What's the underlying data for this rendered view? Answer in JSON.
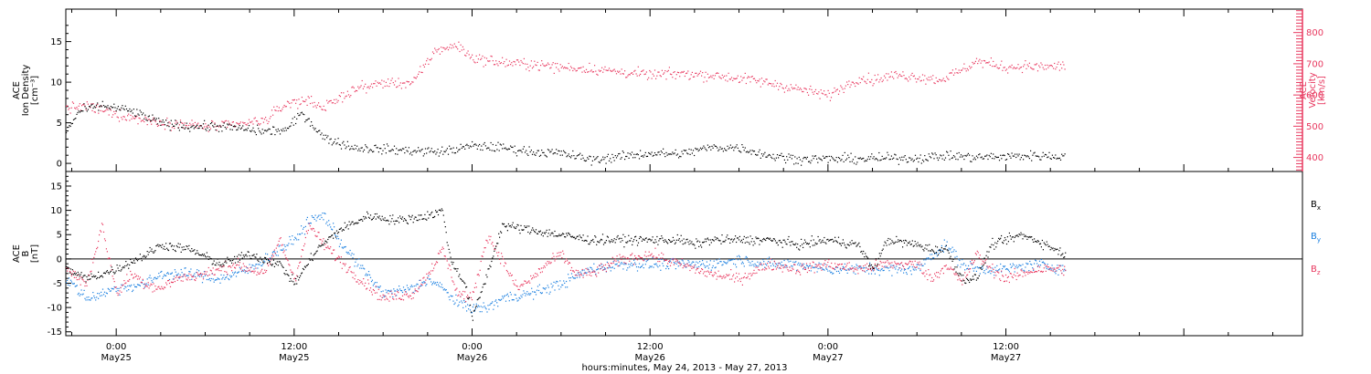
{
  "colors": {
    "density": "#000000",
    "velocity": "#e8385f",
    "bx": "#000000",
    "by": "#1a7fe0",
    "bz": "#e8385f",
    "frame": "#000000"
  },
  "top_panel": {
    "left_axis_label": [
      "ACE",
      "Ion Density",
      "[cm⁻³]"
    ],
    "right_axis_label": [
      "ACE",
      "Velocity",
      "[km/s]"
    ]
  },
  "bottom_panel": {
    "left_axis_label": [
      "ACE",
      "B",
      "[nT]"
    ],
    "legend": {
      "bx": "Bx",
      "by": "By",
      "bz": "Bz"
    }
  },
  "x_axis": {
    "title": "hours:minutes, May 24, 2013 - May 27, 2013"
  },
  "chart_data": [
    {
      "type": "scatter",
      "panel": "top",
      "xlim_hours_from_may24_00": [
        20.6,
        104
      ],
      "ylim": [
        -1,
        19
      ],
      "ylim_right": [
        355,
        875
      ],
      "left_ticks": [
        0,
        5,
        10,
        15
      ],
      "right_ticks": [
        400,
        500,
        600,
        700,
        800
      ],
      "series": [
        {
          "name": "Ion Density",
          "axis": "left",
          "anchors_x_hours": [
            20.6,
            21.5,
            23,
            25,
            27,
            29,
            31,
            33,
            34,
            35.5,
            36.5,
            38,
            40,
            42,
            44,
            46,
            48,
            50,
            52,
            54,
            56,
            58,
            60,
            62,
            64,
            66,
            68,
            70,
            72,
            74,
            76,
            78,
            80,
            82,
            84,
            85.5,
            86.5,
            88
          ],
          "anchors_y": [
            4,
            6.5,
            7.2,
            6.5,
            5,
            4.6,
            4.6,
            4.2,
            4,
            4.2,
            6.3,
            3.2,
            2,
            1.8,
            1.6,
            1.5,
            2.2,
            2.0,
            1.5,
            1.3,
            0.5,
            0.9,
            1.3,
            1.2,
            2.0,
            2.0,
            1.0,
            0.6,
            0.6,
            0.6,
            0.7,
            0.7,
            1.0,
            0.8,
            0.9,
            1.0,
            1.0,
            0.9
          ]
        },
        {
          "name": "Velocity",
          "axis": "right",
          "anchors_x_hours": [
            20.6,
            22,
            24,
            26,
            28,
            30,
            32,
            34,
            35.5,
            37,
            38,
            40,
            42,
            44,
            45.5,
            47,
            48,
            50,
            52,
            54,
            56,
            58,
            60,
            62,
            64,
            66,
            68,
            70,
            72,
            74,
            75,
            76.5,
            78,
            79.5,
            80,
            81,
            82,
            84,
            85.5,
            86,
            88
          ],
          "anchors_y": [
            560,
            565,
            540,
            520,
            510,
            500,
            505,
            520,
            575,
            585,
            560,
            620,
            640,
            640,
            745,
            760,
            720,
            705,
            700,
            690,
            685,
            675,
            665,
            670,
            665,
            655,
            640,
            620,
            600,
            655,
            650,
            665,
            660,
            650,
            660,
            680,
            710,
            690,
            695,
            690,
            695
          ]
        }
      ]
    },
    {
      "type": "scatter",
      "panel": "bottom",
      "xlim_hours_from_may24_00": [
        20.6,
        104
      ],
      "ylim": [
        -15.8,
        18
      ],
      "left_ticks": [
        -15,
        -10,
        -5,
        0,
        5,
        10,
        15
      ],
      "series": [
        {
          "name": "Bx",
          "anchors_x_hours": [
            20.6,
            22,
            24,
            26,
            27,
            29,
            31,
            33,
            35,
            36,
            37.5,
            39,
            41,
            43,
            45,
            46,
            46.5,
            47.5,
            48,
            49,
            50,
            52,
            54,
            56,
            58,
            60,
            62,
            63,
            64,
            66,
            68,
            70,
            72,
            74,
            75,
            76,
            78,
            79,
            80,
            81,
            82,
            83,
            84,
            85,
            86,
            88
          ],
          "anchors_y": [
            -2,
            -4,
            -2,
            1,
            3,
            2,
            -1,
            1,
            -1,
            -5,
            2,
            6,
            9,
            8,
            9,
            10,
            0,
            -5,
            -12,
            -3,
            7,
            6,
            5,
            4,
            4,
            4,
            4,
            3,
            4,
            4,
            4,
            3,
            4,
            3,
            -2,
            4,
            3,
            2,
            2,
            -4,
            -4,
            3,
            4,
            5,
            4,
            1
          ]
        },
        {
          "name": "By",
          "anchors_x_hours": [
            20.6,
            22,
            24,
            26,
            27,
            29,
            31,
            33,
            35,
            36,
            37,
            38,
            39,
            40,
            42,
            44,
            45,
            46,
            47,
            48,
            49,
            50,
            52,
            54,
            56,
            58,
            60,
            62,
            64,
            66,
            68,
            70,
            72,
            74,
            76,
            78,
            79,
            80,
            81,
            82,
            83,
            84,
            86,
            88
          ],
          "anchors_y": [
            -4,
            -8,
            -6,
            -5,
            -3,
            -3,
            -4,
            -2,
            2,
            4,
            8,
            9,
            4,
            0,
            -7,
            -6,
            -4,
            -6,
            -9,
            -10,
            -10,
            -8,
            -7,
            -5,
            -2,
            -1,
            -1,
            -1,
            -1,
            0,
            -1,
            -1,
            -2,
            -2,
            -2,
            -2,
            1,
            3,
            -1,
            -2,
            -2,
            -2,
            -1,
            -2
          ]
        },
        {
          "name": "Bz",
          "anchors_x_hours": [
            20.6,
            22,
            23,
            24,
            25,
            26,
            27,
            28,
            30,
            32,
            34,
            35,
            36,
            37,
            38,
            40,
            42,
            44,
            45,
            46,
            47,
            48,
            49,
            50,
            51,
            52,
            53,
            54,
            55,
            56,
            58,
            60,
            62,
            64,
            66,
            68,
            70,
            72,
            74,
            76,
            78,
            79,
            80,
            81,
            82,
            83,
            84,
            86,
            88
          ],
          "anchors_y": [
            -2,
            -5,
            7,
            -7,
            -3,
            -5,
            -6,
            -4,
            -3,
            -1,
            -3,
            4,
            -4,
            7,
            3,
            -3,
            -8,
            -7,
            -3,
            2,
            -7,
            -8,
            5,
            0,
            -6,
            -4,
            -1,
            1,
            -3,
            -3,
            0,
            1,
            -1,
            -3,
            -4,
            -1,
            -2,
            -1,
            -2,
            -1,
            -1,
            -4,
            -1,
            -5,
            1,
            -2,
            -4,
            -2,
            -2
          ]
        }
      ]
    }
  ]
}
